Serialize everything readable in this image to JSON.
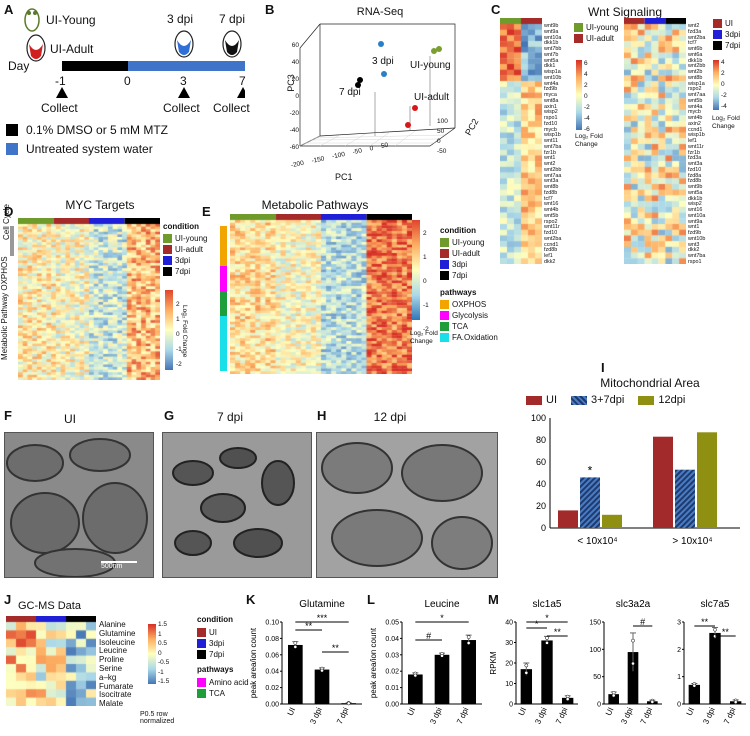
{
  "panels": {
    "A": {
      "label": "A",
      "fish_young": "UI-Young",
      "fish_adult": "UI-Adult",
      "dpi3": "3 dpi",
      "dpi7": "7 dpi",
      "day_label": "Day",
      "days": [
        "-1",
        "0",
        "3",
        "7"
      ],
      "collect": "Collect",
      "legend_black": "0.1% DMSO or 5 mM MTZ",
      "legend_blue": "Untreated system water",
      "colors": {
        "black": "#000000",
        "blue": "#3f74c9"
      }
    },
    "B": {
      "label": "B",
      "title": "RNA-Seq",
      "pc1": "PC1",
      "pc2": "PC2",
      "pc3": "PC3",
      "lbl_3dpi": "3 dpi",
      "lbl_7dpi": "7 dpi",
      "lbl_young": "UI-young",
      "lbl_adult": "UI-adult",
      "pc3_ticks": [
        "60",
        "40",
        "20",
        "0",
        "-20",
        "-40",
        "-60"
      ],
      "pc1_ticks": [
        "-200",
        "-150",
        "-100",
        "-50",
        "0",
        "50"
      ],
      "pc2_ticks": [
        "-50",
        "0",
        "50",
        "100"
      ]
    },
    "C": {
      "label": "C",
      "title": "Wnt Signaling",
      "legend1": [
        "UI-young",
        "UI-adult"
      ],
      "legend2": [
        "UI",
        "3dpi",
        "7dpi"
      ],
      "scale_ticks": [
        "6",
        "4",
        "2",
        "0",
        "-2",
        "-4",
        "-6"
      ],
      "scale2_ticks": [
        "4",
        "2",
        "0",
        "-2",
        "-4"
      ],
      "scale_title": "Log₂ Fold Change",
      "genes_left": [
        "wnt9b",
        "wnt9a",
        "wnt10a",
        "dkk1b",
        "wnt7bb",
        "wnt7b",
        "wnt5a",
        "dkk1",
        "wisp1a",
        "wnt10b",
        "wnt4a",
        "fzd9b",
        "myca",
        "wnt8a",
        "axin1",
        "wisp2",
        "rspo1",
        "fzd10",
        "mycb",
        "wisp1b",
        "wnt11",
        "wnt7ba",
        "fzr1b",
        "wnt1",
        "wnt2",
        "wnt2bb",
        "wnt7aa",
        "wnt3a",
        "wnt8b",
        "fzd8b",
        "tcf7",
        "wnt16",
        "wnt4b",
        "wnt5b",
        "rspo2",
        "wnt11r",
        "fzd10",
        "wnt2ba",
        "ccnd1",
        "fzd8b",
        "lef1",
        "dkk2"
      ],
      "genes_right": [
        "wnt2",
        "fzd3a",
        "wnt2ba",
        "tcf7",
        "wnt6b",
        "wnt6a",
        "dkk1b",
        "wnt2bb",
        "wnt2b",
        "wnt8b",
        "wisp1a",
        "rspo2",
        "wnt7aa",
        "wnt5b",
        "wnt4a",
        "mycb",
        "wnt4b",
        "axin2",
        "ccnd1",
        "wisp1b",
        "lef1",
        "wnt11r",
        "fzr1b",
        "fzd3a",
        "wnt3a",
        "fzd10",
        "fzd8a",
        "fzd8b",
        "wnt9b",
        "wnt5a",
        "dkk1b",
        "wisp2",
        "wnt16",
        "wnt10a",
        "wnt9a",
        "wnt1",
        "fzd9b",
        "wnt10b",
        "wnt3",
        "dkk2",
        "wnt7ba",
        "rspo1"
      ]
    },
    "D": {
      "label": "D",
      "title": "MYC Targets",
      "side1": "Cell Cycle",
      "side2": "Metabolic Pathway OXPHOS",
      "legend_title": "condition",
      "legend": [
        "UI-young",
        "UI-adult",
        "3dpi",
        "7dpi"
      ],
      "scale_title": "Log₂ Fold Change",
      "scale_ticks": [
        "2",
        "1",
        "0",
        "-1",
        "-2"
      ]
    },
    "E": {
      "label": "E",
      "title": "Metabolic Pathways",
      "legend_title": "condition",
      "legend": [
        "UI-young",
        "UI-adult",
        "3dpi",
        "7dpi"
      ],
      "pathways_title": "pathways",
      "pathways": [
        "OXPHOS",
        "Glycolysis",
        "TCA",
        "FA.Oxidation"
      ],
      "scale_title": "Log₂ Fold Change",
      "scale_ticks": [
        "2",
        "1",
        "0",
        "-1",
        "-2"
      ],
      "colors": {
        "young": "#6f9a2c",
        "adult": "#a52a2a",
        "d3": "#1f1fd8",
        "d7": "#000000",
        "oxphos": "#f2a400",
        "glyco": "#ff00ff",
        "tca": "#1e9e3a",
        "fa": "#19e0e8"
      }
    },
    "F": {
      "label": "F",
      "title": "UI",
      "scalebar": "500nm"
    },
    "G": {
      "label": "G",
      "title": "7 dpi"
    },
    "H": {
      "label": "H",
      "title": "12 dpi"
    },
    "I": {
      "label": "I",
      "title": "Mitochondrial Area",
      "star": "*"
    },
    "J": {
      "label": "J",
      "title": "GC-MS Data",
      "metabolites": [
        "Alanine",
        "Glutamine",
        "Isoleucine",
        "Leucine",
        "Proline",
        "Serine",
        "a–kg",
        "Fumarate",
        "Isocitrate",
        "Malate"
      ],
      "legend_title": "condition",
      "legend": [
        "UI",
        "3dpi",
        "7dpi"
      ],
      "pathways_title": "pathways",
      "pathways": [
        "Amino acid",
        "TCA"
      ],
      "scale_ticks": [
        "1.5",
        "1",
        "0.5",
        "0",
        "-0.5",
        "-1",
        "-1.5"
      ],
      "footnote": "P0.5 row normalized"
    },
    "K": {
      "label": "K",
      "title": "Glutamine",
      "ylabel": "peak area/ion count",
      "sig": [
        "**",
        "***",
        "**"
      ]
    },
    "L": {
      "label": "L",
      "title": "Leucine",
      "ylabel": "peak area/ion count",
      "sig": [
        "#",
        "*"
      ]
    },
    "M": {
      "label": "M",
      "titles": [
        "slc1a5",
        "slc3a2a",
        "slc7a5"
      ],
      "ylabel": "RPKM",
      "sig1": [
        "*",
        "*",
        "**",
        "*"
      ],
      "sig2": [
        "#"
      ],
      "sig3": [
        "**",
        "**"
      ]
    }
  },
  "chart_data": [
    {
      "type": "bar",
      "title": "Mitochondrial Area",
      "categories": [
        "< 10x10⁴",
        "> 10x10⁴"
      ],
      "series": [
        {
          "name": "UI",
          "values": [
            16,
            83
          ],
          "color": "#a32a2a"
        },
        {
          "name": "3+7dpi",
          "values": [
            46,
            53
          ],
          "color": "#1e3a6e",
          "pattern": "hatched"
        },
        {
          "name": "12dpi",
          "values": [
            12,
            87
          ],
          "color": "#8f8f12"
        }
      ],
      "yticks": [
        "0",
        "20",
        "40",
        "60",
        "80",
        "100"
      ],
      "ylim": [
        0,
        100
      ]
    },
    {
      "type": "bar",
      "title": "Glutamine",
      "categories": [
        "UI",
        "3 dpi",
        "7 dpi"
      ],
      "values": [
        0.072,
        0.042,
        0.001
      ],
      "errors": [
        0.004,
        0.002,
        0.0005
      ],
      "yticks": [
        "0.00",
        "0.02",
        "0.04",
        "0.06",
        "0.08",
        "0.10"
      ],
      "ylim": [
        0,
        0.1
      ],
      "ylabel": "peak area/ion count"
    },
    {
      "type": "bar",
      "title": "Leucine",
      "categories": [
        "UI",
        "3 dpi",
        "7 dpi"
      ],
      "values": [
        0.018,
        0.03,
        0.039
      ],
      "errors": [
        0.001,
        0.001,
        0.003
      ],
      "yticks": [
        "0.00",
        "0.01",
        "0.02",
        "0.03",
        "0.04",
        "0.05"
      ],
      "ylim": [
        0,
        0.05
      ],
      "ylabel": "peak area/ion count"
    },
    {
      "type": "bar",
      "title": "slc1a5",
      "categories": [
        "UI",
        "3 dpi",
        "7 dpi"
      ],
      "values": [
        17,
        31,
        3
      ],
      "errors": [
        3,
        2,
        1
      ],
      "yticks": [
        "0",
        "10",
        "20",
        "30",
        "40"
      ],
      "ylim": [
        0,
        40
      ],
      "ylabel": "RPKM"
    },
    {
      "type": "bar",
      "title": "slc3a2a",
      "categories": [
        "UI",
        "3 dpi",
        "7 dpi"
      ],
      "values": [
        18,
        95,
        5
      ],
      "errors": [
        4,
        35,
        2
      ],
      "yticks": [
        "0",
        "50",
        "100",
        "150"
      ],
      "ylim": [
        0,
        150
      ]
    },
    {
      "type": "bar",
      "title": "slc7a5",
      "categories": [
        "UI",
        "3 dpi",
        "7 dpi"
      ],
      "values": [
        0.7,
        2.6,
        0.1
      ],
      "errors": [
        0.05,
        0.2,
        0.05
      ],
      "yticks": [
        "0",
        "1",
        "2",
        "3"
      ],
      "ylim": [
        0,
        3
      ]
    },
    {
      "type": "scatter",
      "title": "RNA-Seq",
      "series": [
        {
          "name": "UI-young",
          "points": [
            [
              70,
              50,
              40
            ],
            [
              60,
              45,
              42
            ]
          ]
        },
        {
          "name": "UI-adult",
          "points": [
            [
              20,
              60,
              -40
            ],
            [
              15,
              55,
              -20
            ]
          ]
        },
        {
          "name": "3 dpi",
          "points": [
            [
              -60,
              -20,
              40
            ],
            [
              -55,
              -10,
              20
            ]
          ]
        },
        {
          "name": "7 dpi",
          "points": [
            [
              -170,
              -30,
              5
            ],
            [
              -175,
              -35,
              0
            ]
          ]
        }
      ]
    }
  ]
}
